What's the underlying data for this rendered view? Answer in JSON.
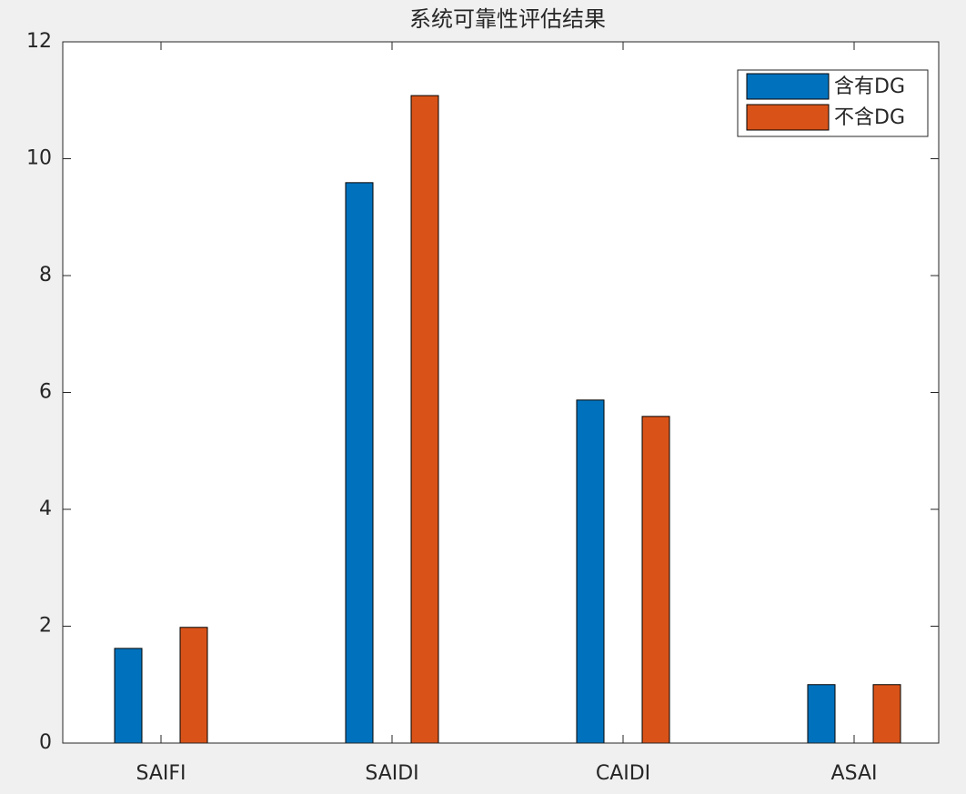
{
  "chart_data": {
    "type": "bar",
    "title": "系统可靠性评估结果",
    "categories": [
      "SAIFI",
      "SAIDI",
      "CAIDI",
      "ASAI"
    ],
    "series": [
      {
        "name": "含有DG",
        "color": "#0072bd",
        "values": [
          1.62,
          9.59,
          5.87,
          1.0
        ]
      },
      {
        "name": "不含DG",
        "color": "#d95319",
        "values": [
          1.98,
          11.08,
          5.59,
          1.0
        ]
      }
    ],
    "ylim": [
      0,
      12
    ],
    "yticks": [
      0,
      2,
      4,
      6,
      8,
      10,
      12
    ],
    "legend": "northeast"
  }
}
